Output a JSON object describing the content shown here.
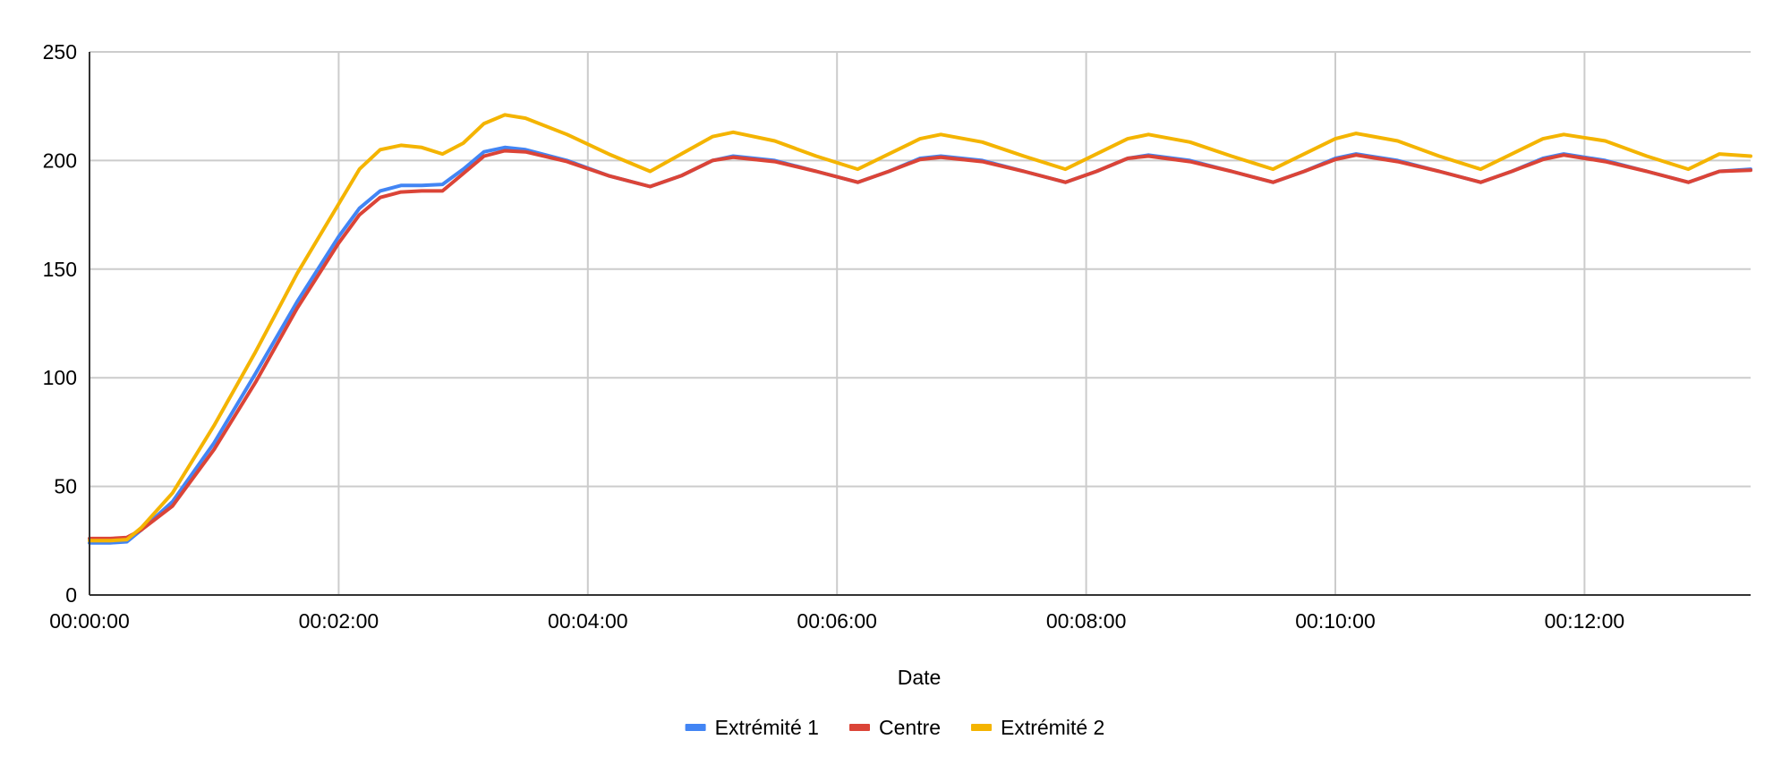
{
  "chart_data": {
    "type": "line",
    "title": "",
    "xlabel": "Date",
    "ylabel": "",
    "x_unit": "elapsed time (hh:mm:ss)",
    "xlim": [
      "00:00:00",
      "00:13:20"
    ],
    "ylim": [
      0,
      250
    ],
    "x_ticks": [
      "00:00:00",
      "00:02:00",
      "00:04:00",
      "00:06:00",
      "00:08:00",
      "00:10:00",
      "00:12:00"
    ],
    "y_ticks": [
      0,
      50,
      100,
      150,
      200,
      250
    ],
    "grid": true,
    "legend_position": "bottom",
    "series": [
      {
        "name": "Extrémité 1",
        "color": "#4285f4",
        "points": [
          [
            "00:00:00",
            24
          ],
          [
            "00:00:10",
            24
          ],
          [
            "00:00:18",
            24.5
          ],
          [
            "00:00:25",
            30
          ],
          [
            "00:00:40",
            43
          ],
          [
            "00:01:00",
            70
          ],
          [
            "00:01:20",
            102
          ],
          [
            "00:01:40",
            135
          ],
          [
            "00:02:00",
            165
          ],
          [
            "00:02:10",
            178
          ],
          [
            "00:02:20",
            186
          ],
          [
            "00:02:30",
            188.5
          ],
          [
            "00:02:40",
            188.5
          ],
          [
            "00:02:50",
            189
          ],
          [
            "00:03:00",
            196
          ],
          [
            "00:03:10",
            204
          ],
          [
            "00:03:20",
            206
          ],
          [
            "00:03:30",
            205
          ],
          [
            "00:03:50",
            200
          ],
          [
            "00:04:10",
            193
          ],
          [
            "00:04:30",
            188
          ],
          [
            "00:04:45",
            193
          ],
          [
            "00:05:00",
            200
          ],
          [
            "00:05:10",
            202
          ],
          [
            "00:05:30",
            200
          ],
          [
            "00:05:50",
            195
          ],
          [
            "00:06:10",
            190
          ],
          [
            "00:06:25",
            195
          ],
          [
            "00:06:40",
            201
          ],
          [
            "00:06:50",
            202
          ],
          [
            "00:07:10",
            200
          ],
          [
            "00:07:30",
            195
          ],
          [
            "00:07:50",
            190
          ],
          [
            "00:08:05",
            195
          ],
          [
            "00:08:20",
            201
          ],
          [
            "00:08:30",
            202.5
          ],
          [
            "00:08:50",
            200
          ],
          [
            "00:09:10",
            195
          ],
          [
            "00:09:30",
            190
          ],
          [
            "00:09:45",
            195
          ],
          [
            "00:10:00",
            201
          ],
          [
            "00:10:10",
            203
          ],
          [
            "00:10:30",
            200
          ],
          [
            "00:10:50",
            195
          ],
          [
            "00:11:10",
            190
          ],
          [
            "00:11:25",
            195
          ],
          [
            "00:11:40",
            201
          ],
          [
            "00:11:50",
            203
          ],
          [
            "00:12:10",
            200
          ],
          [
            "00:12:30",
            195
          ],
          [
            "00:12:50",
            190
          ],
          [
            "00:13:05",
            195
          ],
          [
            "00:13:20",
            196
          ]
        ]
      },
      {
        "name": "Centre",
        "color": "#db4437",
        "points": [
          [
            "00:00:00",
            26
          ],
          [
            "00:00:10",
            26
          ],
          [
            "00:00:18",
            26.5
          ],
          [
            "00:00:25",
            30
          ],
          [
            "00:00:40",
            41
          ],
          [
            "00:01:00",
            67
          ],
          [
            "00:01:20",
            98
          ],
          [
            "00:01:40",
            132
          ],
          [
            "00:02:00",
            162
          ],
          [
            "00:02:10",
            175
          ],
          [
            "00:02:20",
            183
          ],
          [
            "00:02:30",
            185.5
          ],
          [
            "00:02:40",
            186
          ],
          [
            "00:02:50",
            186
          ],
          [
            "00:03:00",
            194
          ],
          [
            "00:03:10",
            202
          ],
          [
            "00:03:20",
            204.5
          ],
          [
            "00:03:30",
            204
          ],
          [
            "00:03:50",
            199.5
          ],
          [
            "00:04:10",
            193
          ],
          [
            "00:04:30",
            188
          ],
          [
            "00:04:45",
            193
          ],
          [
            "00:05:00",
            200
          ],
          [
            "00:05:10",
            201.5
          ],
          [
            "00:05:30",
            199.5
          ],
          [
            "00:05:50",
            195
          ],
          [
            "00:06:10",
            190
          ],
          [
            "00:06:25",
            195
          ],
          [
            "00:06:40",
            200.5
          ],
          [
            "00:06:50",
            201.5
          ],
          [
            "00:07:10",
            199.5
          ],
          [
            "00:07:30",
            195
          ],
          [
            "00:07:50",
            190
          ],
          [
            "00:08:05",
            195
          ],
          [
            "00:08:20",
            201
          ],
          [
            "00:08:30",
            202
          ],
          [
            "00:08:50",
            199.5
          ],
          [
            "00:09:10",
            195
          ],
          [
            "00:09:30",
            190
          ],
          [
            "00:09:45",
            195
          ],
          [
            "00:10:00",
            200.5
          ],
          [
            "00:10:10",
            202.5
          ],
          [
            "00:10:30",
            199.5
          ],
          [
            "00:10:50",
            195
          ],
          [
            "00:11:10",
            190
          ],
          [
            "00:11:25",
            195
          ],
          [
            "00:11:40",
            200.5
          ],
          [
            "00:11:50",
            202.5
          ],
          [
            "00:12:10",
            199.5
          ],
          [
            "00:12:30",
            195
          ],
          [
            "00:12:50",
            190
          ],
          [
            "00:13:05",
            195
          ],
          [
            "00:13:20",
            195.5
          ]
        ]
      },
      {
        "name": "Extrémité 2",
        "color": "#f4b400",
        "points": [
          [
            "00:00:00",
            25
          ],
          [
            "00:00:10",
            25
          ],
          [
            "00:00:18",
            25.5
          ],
          [
            "00:00:25",
            31
          ],
          [
            "00:00:40",
            47
          ],
          [
            "00:01:00",
            78
          ],
          [
            "00:01:20",
            112
          ],
          [
            "00:01:40",
            148
          ],
          [
            "00:02:00",
            180
          ],
          [
            "00:02:10",
            196
          ],
          [
            "00:02:20",
            205
          ],
          [
            "00:02:30",
            207
          ],
          [
            "00:02:40",
            206
          ],
          [
            "00:02:50",
            203
          ],
          [
            "00:03:00",
            208
          ],
          [
            "00:03:10",
            217
          ],
          [
            "00:03:20",
            221
          ],
          [
            "00:03:30",
            219.5
          ],
          [
            "00:03:50",
            212
          ],
          [
            "00:04:10",
            203
          ],
          [
            "00:04:30",
            195
          ],
          [
            "00:04:45",
            203
          ],
          [
            "00:05:00",
            211
          ],
          [
            "00:05:10",
            213
          ],
          [
            "00:05:30",
            209
          ],
          [
            "00:05:50",
            202
          ],
          [
            "00:06:10",
            196
          ],
          [
            "00:06:25",
            203
          ],
          [
            "00:06:40",
            210
          ],
          [
            "00:06:50",
            212
          ],
          [
            "00:07:10",
            208.5
          ],
          [
            "00:07:30",
            202
          ],
          [
            "00:07:50",
            196
          ],
          [
            "00:08:05",
            203
          ],
          [
            "00:08:20",
            210
          ],
          [
            "00:08:30",
            212
          ],
          [
            "00:08:50",
            208.5
          ],
          [
            "00:09:10",
            202
          ],
          [
            "00:09:30",
            196
          ],
          [
            "00:09:45",
            203
          ],
          [
            "00:10:00",
            210
          ],
          [
            "00:10:10",
            212.5
          ],
          [
            "00:10:30",
            209
          ],
          [
            "00:10:50",
            202
          ],
          [
            "00:11:10",
            196
          ],
          [
            "00:11:25",
            203
          ],
          [
            "00:11:40",
            210
          ],
          [
            "00:11:50",
            212
          ],
          [
            "00:12:10",
            209
          ],
          [
            "00:12:30",
            202
          ],
          [
            "00:12:50",
            196
          ],
          [
            "00:13:05",
            203
          ],
          [
            "00:13:20",
            202
          ]
        ]
      }
    ]
  }
}
